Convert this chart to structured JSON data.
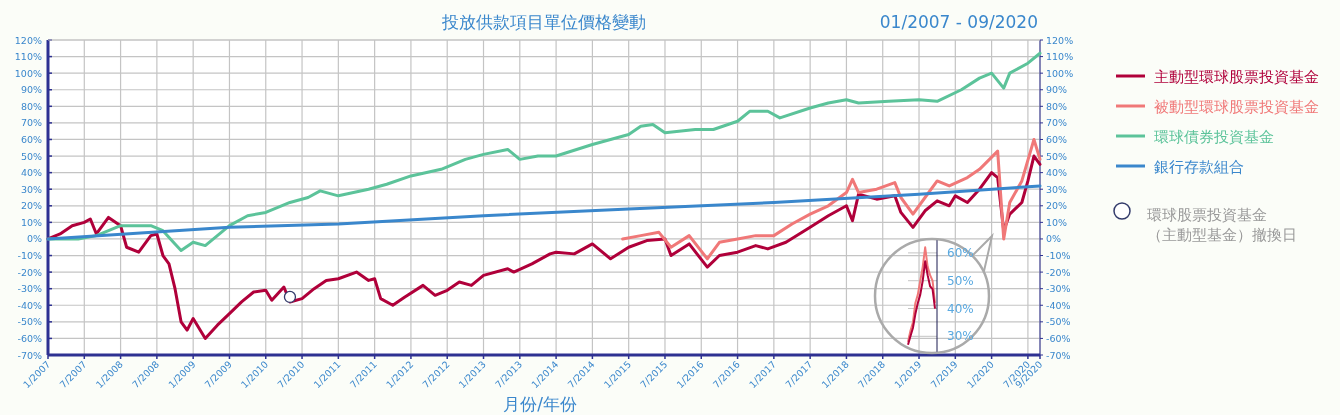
{
  "chart_data": [
    {
      "type": "line",
      "title": "投放供款項目單位價格變動",
      "subtitle": "01/2007 - 09/2020",
      "xlabel": "月份/年份",
      "xlim": [
        "2007-01",
        "2020-09"
      ],
      "xticks": [
        {
          "value": "2007-01",
          "label": "1/2007"
        },
        {
          "value": "2007-07",
          "label": "7/2007"
        },
        {
          "value": "2008-01",
          "label": "1/2008"
        },
        {
          "value": "2008-07",
          "label": "7/2008"
        },
        {
          "value": "2009-01",
          "label": "1/2009"
        },
        {
          "value": "2009-07",
          "label": "7/2009"
        },
        {
          "value": "2010-01",
          "label": "1/2010"
        },
        {
          "value": "2010-07",
          "label": "7/2010"
        },
        {
          "value": "2011-01",
          "label": "1/2011"
        },
        {
          "value": "2011-07",
          "label": "7/2011"
        },
        {
          "value": "2012-01",
          "label": "1/2012"
        },
        {
          "value": "2012-07",
          "label": "7/2012"
        },
        {
          "value": "2013-01",
          "label": "1/2013"
        },
        {
          "value": "2013-07",
          "label": "7/2013"
        },
        {
          "value": "2014-01",
          "label": "1/2014"
        },
        {
          "value": "2014-07",
          "label": "7/2014"
        },
        {
          "value": "2015-01",
          "label": "1/2015"
        },
        {
          "value": "2015-07",
          "label": "7/2015"
        },
        {
          "value": "2016-01",
          "label": "1/2016"
        },
        {
          "value": "2016-07",
          "label": "7/2016"
        },
        {
          "value": "2017-01",
          "label": "1/2017"
        },
        {
          "value": "2017-07",
          "label": "7/2017"
        },
        {
          "value": "2018-01",
          "label": "1/2018"
        },
        {
          "value": "2018-07",
          "label": "7/2018"
        },
        {
          "value": "2019-01",
          "label": "1/2019"
        },
        {
          "value": "2019-07",
          "label": "7/2019"
        },
        {
          "value": "2020-01",
          "label": "1/2020"
        },
        {
          "value": "2020-07",
          "label": "7/2020"
        },
        {
          "value": "2020-09",
          "label": "9/2020"
        }
      ],
      "ylim": [
        -70,
        120
      ],
      "yticks": [
        {
          "value": -70,
          "label": "-70%"
        },
        {
          "value": -60,
          "label": "-60%"
        },
        {
          "value": -50,
          "label": "-50%"
        },
        {
          "value": -40,
          "label": "-40%"
        },
        {
          "value": -30,
          "label": "-30%"
        },
        {
          "value": -20,
          "label": "-20%"
        },
        {
          "value": -10,
          "label": "-10%"
        },
        {
          "value": 0,
          "label": "0%"
        },
        {
          "value": 10,
          "label": "10%"
        },
        {
          "value": 20,
          "label": "20%"
        },
        {
          "value": 30,
          "label": "30%"
        },
        {
          "value": 40,
          "label": "40%"
        },
        {
          "value": 50,
          "label": "50%"
        },
        {
          "value": 60,
          "label": "60%"
        },
        {
          "value": 70,
          "label": "70%"
        },
        {
          "value": 80,
          "label": "80%"
        },
        {
          "value": 90,
          "label": "90%"
        },
        {
          "value": 100,
          "label": "100%"
        },
        {
          "value": 110,
          "label": "110%"
        },
        {
          "value": 120,
          "label": "120%"
        }
      ],
      "y2lim": [
        -70,
        120
      ],
      "y2ticks": [
        {
          "value": -70,
          "label": "-70%"
        },
        {
          "value": -60,
          "label": "-60%"
        },
        {
          "value": -50,
          "label": "-50%"
        },
        {
          "value": -40,
          "label": "-40%"
        },
        {
          "value": -30,
          "label": "-30%"
        },
        {
          "value": -20,
          "label": "-20%"
        },
        {
          "value": -10,
          "label": "-10%"
        },
        {
          "value": 0,
          "label": "0%"
        },
        {
          "value": 10,
          "label": "10%"
        },
        {
          "value": 20,
          "label": "20%"
        },
        {
          "value": 30,
          "label": "30%"
        },
        {
          "value": 40,
          "label": "40%"
        },
        {
          "value": 50,
          "label": "50%"
        },
        {
          "value": 60,
          "label": "60%"
        },
        {
          "value": 70,
          "label": "70%"
        },
        {
          "value": 80,
          "label": "80%"
        },
        {
          "value": 90,
          "label": "90%"
        },
        {
          "value": 100,
          "label": "100%"
        },
        {
          "value": 110,
          "label": "110%"
        },
        {
          "value": 120,
          "label": "120%"
        }
      ],
      "grid": true,
      "legend": "right",
      "series": [
        {
          "name": "主動型環球股票投資基金",
          "color": "#b0003a",
          "x": [
            "2007-01",
            "2007-03",
            "2007-05",
            "2007-07",
            "2007-08",
            "2007-09",
            "2007-11",
            "2008-01",
            "2008-02",
            "2008-04",
            "2008-06",
            "2008-07",
            "2008-08",
            "2008-09",
            "2008-10",
            "2008-11",
            "2008-12",
            "2009-01",
            "2009-03",
            "2009-05",
            "2009-07",
            "2009-09",
            "2009-11",
            "2010-01",
            "2010-02",
            "2010-04",
            "2010-05",
            "2010-07",
            "2010-09",
            "2010-11",
            "2011-01",
            "2011-04",
            "2011-06",
            "2011-07",
            "2011-08",
            "2011-10",
            "2011-12",
            "2012-03",
            "2012-05",
            "2012-07",
            "2012-09",
            "2012-11",
            "2013-01",
            "2013-05",
            "2013-06",
            "2013-09",
            "2013-12",
            "2014-01",
            "2014-04",
            "2014-07",
            "2014-10",
            "2015-01",
            "2015-04",
            "2015-07",
            "2015-08",
            "2015-11",
            "2016-02",
            "2016-04",
            "2016-07",
            "2016-10",
            "2016-12",
            "2017-03",
            "2017-07",
            "2017-10",
            "2018-01",
            "2018-02",
            "2018-03",
            "2018-06",
            "2018-09",
            "2018-10",
            "2018-12",
            "2019-02",
            "2019-04",
            "2019-06",
            "2019-07",
            "2019-09",
            "2019-11",
            "2020-01",
            "2020-02",
            "2020-03",
            "2020-04",
            "2020-06",
            "2020-07",
            "2020-08",
            "2020-09"
          ],
          "values": [
            0,
            3,
            8,
            10,
            12,
            3,
            13,
            8,
            -5,
            -8,
            2,
            3,
            -10,
            -15,
            -30,
            -50,
            -55,
            -48,
            -60,
            -52,
            -45,
            -38,
            -32,
            -31,
            -37,
            -29,
            -38,
            -36,
            -30,
            -25,
            -24,
            -20,
            -25,
            -24,
            -36,
            -40,
            -35,
            -28,
            -34,
            -31,
            -26,
            -28,
            -22,
            -18,
            -20,
            -15,
            -9,
            -8,
            -9,
            -3,
            -12,
            -5,
            -1,
            0,
            -10,
            -3,
            -17,
            -10,
            -8,
            -4,
            -6,
            -2,
            7,
            14,
            20,
            11,
            27,
            24,
            26,
            16,
            7,
            17,
            23,
            20,
            26,
            22,
            30,
            40,
            37,
            5,
            15,
            22,
            35,
            50,
            45
          ]
        },
        {
          "name": "被動型環球股票投資基金",
          "color": "#f07878",
          "x": [
            "2014-12",
            "2015-03",
            "2015-06",
            "2015-08",
            "2015-11",
            "2016-02",
            "2016-04",
            "2016-07",
            "2016-10",
            "2017-01",
            "2017-04",
            "2017-07",
            "2017-10",
            "2018-01",
            "2018-02",
            "2018-03",
            "2018-06",
            "2018-09",
            "2018-10",
            "2018-12",
            "2019-02",
            "2019-04",
            "2019-06",
            "2019-09",
            "2019-11",
            "2020-02",
            "2020-03",
            "2020-04",
            "2020-06",
            "2020-08",
            "2020-09"
          ],
          "values": [
            0,
            2,
            4,
            -5,
            2,
            -12,
            -2,
            0,
            2,
            2,
            9,
            15,
            20,
            28,
            36,
            28,
            30,
            34,
            25,
            15,
            25,
            35,
            32,
            37,
            42,
            53,
            0,
            22,
            35,
            60,
            48
          ]
        },
        {
          "name": "環球債券投資基金",
          "color": "#5cc39a",
          "x": [
            "2007-01",
            "2007-06",
            "2007-09",
            "2008-01",
            "2008-06",
            "2008-08",
            "2008-10",
            "2008-11",
            "2009-01",
            "2009-03",
            "2009-05",
            "2009-07",
            "2009-10",
            "2010-01",
            "2010-05",
            "2010-08",
            "2010-10",
            "2011-01",
            "2011-06",
            "2011-09",
            "2012-01",
            "2012-06",
            "2012-10",
            "2013-01",
            "2013-05",
            "2013-07",
            "2013-10",
            "2014-01",
            "2014-07",
            "2015-01",
            "2015-03",
            "2015-05",
            "2015-07",
            "2015-12",
            "2016-03",
            "2016-07",
            "2016-09",
            "2016-12",
            "2017-02",
            "2017-07",
            "2017-10",
            "2018-01",
            "2018-03",
            "2018-08",
            "2019-01",
            "2019-04",
            "2019-08",
            "2019-11",
            "2020-01",
            "2020-03",
            "2020-04",
            "2020-07",
            "2020-09"
          ],
          "values": [
            0,
            0,
            2,
            8,
            8,
            5,
            -3,
            -7,
            -2,
            -4,
            2,
            8,
            14,
            16,
            22,
            25,
            29,
            26,
            30,
            33,
            38,
            42,
            48,
            51,
            54,
            48,
            50,
            50,
            57,
            63,
            68,
            69,
            64,
            66,
            66,
            71,
            77,
            77,
            73,
            79,
            82,
            84,
            82,
            83,
            84,
            83,
            90,
            97,
            100,
            91,
            100,
            106,
            112
          ]
        },
        {
          "name": "銀行存款組合",
          "color": "#3a87cc",
          "x": [
            "2007-01",
            "2009-07",
            "2011-01",
            "2013-01",
            "2015-01",
            "2017-01",
            "2019-01",
            "2020-09"
          ],
          "values": [
            0,
            7,
            9,
            14,
            18,
            22,
            27,
            32
          ]
        },
        {
          "name": "環球股票投資基金（主動型基金）撤換日",
          "type": "scatter",
          "color": "#333b6b",
          "x": [
            "2010-05"
          ],
          "values": [
            -35
          ]
        }
      ]
    },
    {
      "type": "line",
      "categories": [
        null,
        null,
        null,
        null,
        null,
        null,
        null,
        null,
        null,
        null,
        null,
        null
      ],
      "ylim": [
        24,
        65
      ],
      "yticks": [
        {
          "value": 30,
          "label": "30%"
        },
        {
          "value": 40,
          "label": "40%"
        },
        {
          "value": 50,
          "label": "50%"
        },
        {
          "value": 60,
          "label": "60%"
        }
      ],
      "grid": "y",
      "tick_labels": "y",
      "series": [
        {
          "color": "#f07878",
          "values": [
            28,
            32,
            35,
            42,
            45,
            50,
            55,
            62,
            55,
            52,
            50,
            42
          ]
        },
        {
          "color": "#b0003a",
          "values": [
            27,
            30,
            33,
            38,
            42,
            45,
            50,
            57,
            52,
            48,
            47,
            40
          ]
        }
      ]
    }
  ]
}
